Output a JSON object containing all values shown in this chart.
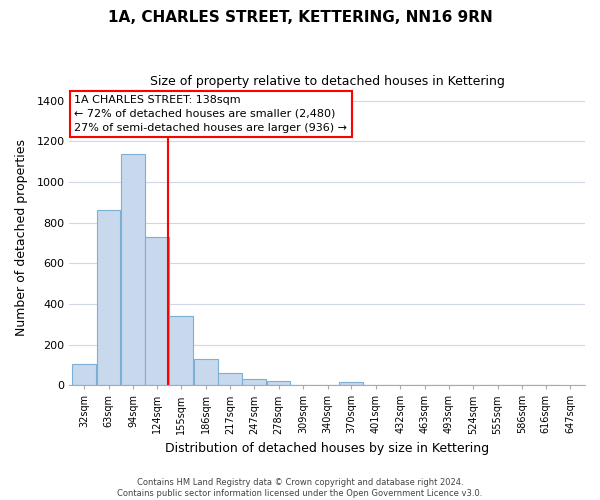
{
  "title_line1": "1A, CHARLES STREET, KETTERING, NN16 9RN",
  "title_line2": "Size of property relative to detached houses in Kettering",
  "xlabel": "Distribution of detached houses by size in Kettering",
  "ylabel": "Number of detached properties",
  "bar_bins": [
    32,
    63,
    94,
    124,
    155,
    186,
    217,
    247,
    278,
    309,
    340,
    370,
    401,
    432,
    463,
    493,
    524,
    555,
    586,
    616,
    647
  ],
  "bar_heights": [
    105,
    860,
    1140,
    730,
    340,
    130,
    60,
    30,
    20,
    0,
    0,
    15,
    0,
    0,
    0,
    0,
    0,
    0,
    0,
    0
  ],
  "bar_color": "#c8d9ee",
  "bar_edgecolor": "#7bafd4",
  "red_line_x": 138,
  "ylim": [
    0,
    1450
  ],
  "yticks": [
    0,
    200,
    400,
    600,
    800,
    1000,
    1200,
    1400
  ],
  "annotation_title": "1A CHARLES STREET: 138sqm",
  "annotation_line2": "← 72% of detached houses are smaller (2,480)",
  "annotation_line3": "27% of semi-detached houses are larger (936) →",
  "footer_line1": "Contains HM Land Registry data © Crown copyright and database right 2024.",
  "footer_line2": "Contains public sector information licensed under the Open Government Licence v3.0.",
  "background_color": "#ffffff",
  "grid_color": "#d0d8e8"
}
